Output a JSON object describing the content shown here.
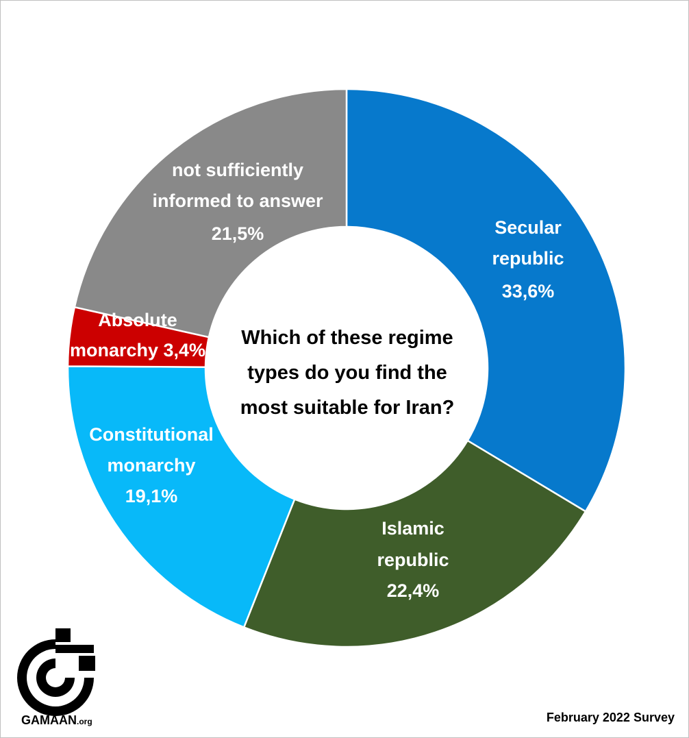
{
  "chart_data": {
    "type": "pie",
    "title": "Which of these regime types do you find the most suitable for Iran?",
    "title_lines": [
      "Which of these regime",
      "types do you find the",
      "most suitable for Iran?"
    ],
    "slices": [
      {
        "category": "Secular republic",
        "lines": [
          "Secular",
          "republic",
          "33,6%"
        ],
        "value": 33.6,
        "value_label": "33,6%",
        "color": "#0779cc"
      },
      {
        "category": "Islamic republic",
        "lines": [
          "Islamic",
          "republic",
          "22,4%"
        ],
        "value": 22.4,
        "value_label": "22,4%",
        "color": "#3f5d2a"
      },
      {
        "category": "Constitutional monarchy",
        "lines": [
          "Constitutional",
          "monarchy",
          "19,1%"
        ],
        "value": 19.1,
        "value_label": "19,1%",
        "color": "#08b9f9"
      },
      {
        "category": "Absolute monarchy",
        "lines": [
          "Absolute",
          "monarchy 3,4%"
        ],
        "value": 3.4,
        "value_label": "3,4%",
        "color": "#cc0000"
      },
      {
        "category": "not sufficiently informed to answer",
        "lines": [
          "not sufficiently",
          "informed to answer",
          "21,5%"
        ],
        "value": 21.5,
        "value_label": "21,5%",
        "color": "#898989"
      }
    ],
    "legend": "none"
  },
  "footer": {
    "brand": "GAMAAN",
    "brand_suffix": ".org",
    "survey": "February 2022 Survey"
  },
  "logo": {
    "icon": "gamaan-logo-icon",
    "color": "#000000"
  }
}
